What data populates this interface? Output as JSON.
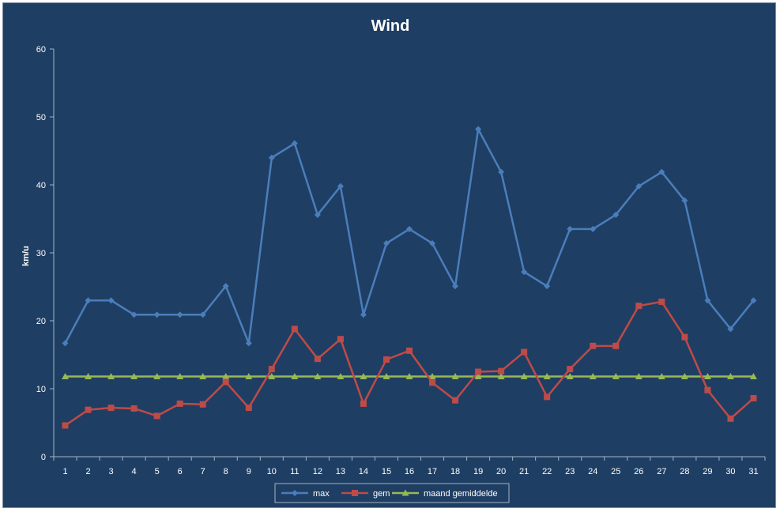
{
  "chart_data": {
    "type": "line",
    "title": "Wind",
    "xlabel": "",
    "ylabel": "km/u",
    "ylim": [
      0,
      60
    ],
    "yticks": [
      0,
      10,
      20,
      30,
      40,
      50,
      60
    ],
    "categories": [
      "1",
      "2",
      "3",
      "4",
      "5",
      "6",
      "7",
      "8",
      "9",
      "10",
      "11",
      "12",
      "13",
      "14",
      "15",
      "16",
      "17",
      "18",
      "19",
      "20",
      "21",
      "22",
      "23",
      "24",
      "25",
      "26",
      "27",
      "28",
      "29",
      "30",
      "31"
    ],
    "grid": false,
    "legend": "bottom",
    "series": [
      {
        "name": "max",
        "color": "#4A7EBB",
        "marker": "diamond",
        "values": [
          16.7,
          23.0,
          23.0,
          20.9,
          20.9,
          20.9,
          20.9,
          25.1,
          16.7,
          44.0,
          46.1,
          35.6,
          39.8,
          20.9,
          31.4,
          33.5,
          31.4,
          25.1,
          48.2,
          41.9,
          27.2,
          25.1,
          33.5,
          33.5,
          35.6,
          39.8,
          41.9,
          37.7,
          23.0,
          18.8,
          23.0
        ]
      },
      {
        "name": "gem",
        "color": "#BE4B48",
        "marker": "square",
        "values": [
          4.6,
          6.9,
          7.2,
          7.1,
          6.0,
          7.8,
          7.7,
          11.0,
          7.2,
          12.9,
          18.8,
          14.4,
          17.3,
          7.8,
          14.3,
          15.6,
          10.9,
          8.3,
          12.5,
          12.6,
          15.4,
          8.8,
          12.9,
          16.3,
          16.3,
          22.2,
          22.8,
          17.6,
          9.8,
          5.6,
          8.6
        ]
      },
      {
        "name": "maand gemiddelde",
        "color": "#98B954",
        "marker": "triangle",
        "values": [
          11.8,
          11.8,
          11.8,
          11.8,
          11.8,
          11.8,
          11.8,
          11.8,
          11.8,
          11.8,
          11.8,
          11.8,
          11.8,
          11.8,
          11.8,
          11.8,
          11.8,
          11.8,
          11.8,
          11.8,
          11.8,
          11.8,
          11.8,
          11.8,
          11.8,
          11.8,
          11.8,
          11.8,
          11.8,
          11.8,
          11.8
        ]
      }
    ]
  },
  "style": {
    "background": "#1F3E63",
    "axis_color": "#A6B4C6",
    "text_color": "#FFFFFF"
  }
}
